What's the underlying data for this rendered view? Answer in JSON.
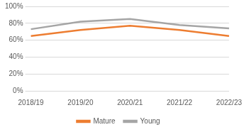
{
  "chart_data": {
    "type": "line",
    "categories": [
      "2018/19",
      "2019/20",
      "2020/21",
      "2021/22",
      "2022/23"
    ],
    "series": [
      {
        "name": "Mature",
        "color": "#ed7d31",
        "values": [
          65,
          72,
          77,
          72,
          65
        ]
      },
      {
        "name": "Young",
        "color": "#a5a5a5",
        "values": [
          73,
          82,
          85,
          78,
          74
        ]
      }
    ],
    "ylim": [
      0,
      100
    ],
    "yticks": [
      {
        "value": 0,
        "label": "0%"
      },
      {
        "value": 20,
        "label": "20%"
      },
      {
        "value": 40,
        "label": "40%"
      },
      {
        "value": 60,
        "label": "60%"
      },
      {
        "value": 80,
        "label": "80%"
      },
      {
        "value": 100,
        "label": "100%"
      }
    ],
    "grid": true,
    "legend": "bottom",
    "marker": "none"
  }
}
